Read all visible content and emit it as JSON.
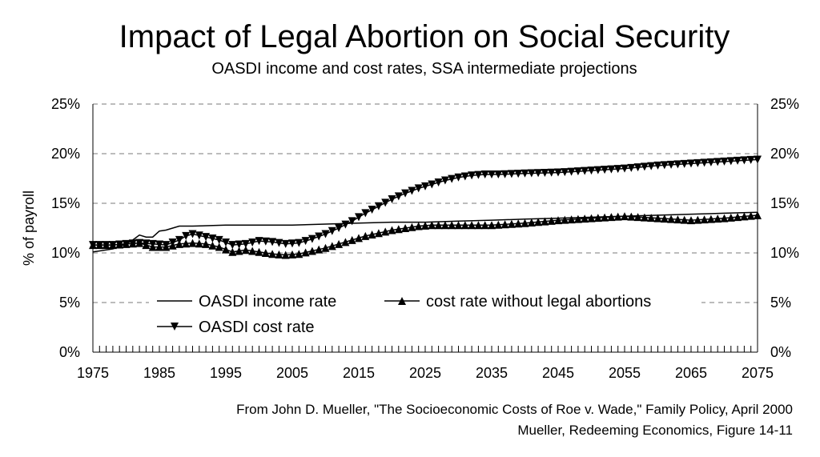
{
  "chart_data": {
    "type": "line",
    "title": "Impact of Legal Abortion on Social Security",
    "subtitle": "OASDI income and cost rates, SSA intermediate projections",
    "ylabel": "% of payroll",
    "xlabel": "",
    "xlim": [
      1975,
      2075
    ],
    "ylim": [
      0,
      25
    ],
    "x_ticks": [
      "1975",
      "1985",
      "1995",
      "2005",
      "2015",
      "2025",
      "2035",
      "2045",
      "2055",
      "2065",
      "2075"
    ],
    "y_ticks_left": [
      "0%",
      "5%",
      "10%",
      "15%",
      "20%",
      "25%"
    ],
    "y_ticks_right": [
      "0%",
      "5%",
      "10%",
      "15%",
      "20%",
      "25%"
    ],
    "grid": "horizontal dashed",
    "legend_position": "inside-bottom-left",
    "series": [
      {
        "name": "OASDI income rate",
        "marker": "none",
        "x": [
          1975,
          1978,
          1980,
          1981,
          1982,
          1983,
          1984,
          1985,
          1986,
          1987,
          1988,
          1990,
          1995,
          2000,
          2005,
          2010,
          2015,
          2020,
          2025,
          2030,
          2035,
          2040,
          2045,
          2050,
          2055,
          2060,
          2065,
          2070,
          2075
        ],
        "values": [
          10.1,
          10.4,
          10.9,
          11.3,
          11.8,
          11.6,
          11.6,
          12.2,
          12.3,
          12.5,
          12.7,
          12.7,
          12.8,
          12.8,
          12.8,
          12.9,
          13.0,
          13.1,
          13.1,
          13.2,
          13.3,
          13.4,
          13.5,
          13.6,
          13.7,
          13.8,
          13.9,
          14.0,
          14.1
        ]
      },
      {
        "name": "OASDI cost rate",
        "marker": "triangle-down",
        "x": [
          1975,
          1978,
          1980,
          1982,
          1984,
          1986,
          1988,
          1989,
          1990,
          1992,
          1994,
          1996,
          1998,
          2000,
          2002,
          2004,
          2006,
          2008,
          2010,
          2012,
          2014,
          2016,
          2018,
          2020,
          2022,
          2024,
          2026,
          2028,
          2030,
          2032,
          2034,
          2036,
          2040,
          2045,
          2050,
          2055,
          2060,
          2065,
          2070,
          2075
        ],
        "values": [
          10.8,
          10.8,
          10.9,
          11.0,
          10.9,
          10.8,
          11.3,
          11.7,
          11.9,
          11.6,
          11.3,
          10.8,
          10.9,
          11.2,
          11.1,
          10.9,
          11.0,
          11.4,
          11.9,
          12.5,
          13.2,
          14.0,
          14.7,
          15.4,
          16.0,
          16.5,
          16.9,
          17.3,
          17.6,
          17.8,
          17.9,
          17.9,
          18.0,
          18.1,
          18.3,
          18.5,
          18.8,
          19.0,
          19.2,
          19.4
        ]
      },
      {
        "name": "cost rate without legal abortions",
        "marker": "triangle-up",
        "x": [
          1975,
          1978,
          1980,
          1982,
          1984,
          1986,
          1988,
          1990,
          1992,
          1994,
          1996,
          1998,
          2000,
          2002,
          2004,
          2006,
          2008,
          2010,
          2012,
          2014,
          2016,
          2018,
          2020,
          2022,
          2024,
          2026,
          2030,
          2035,
          2040,
          2045,
          2050,
          2055,
          2060,
          2065,
          2070,
          2075
        ],
        "values": [
          10.8,
          10.8,
          10.9,
          11.0,
          10.6,
          10.6,
          10.9,
          11.0,
          10.9,
          10.6,
          10.1,
          10.3,
          10.1,
          9.9,
          9.8,
          9.9,
          10.2,
          10.5,
          10.9,
          11.3,
          11.7,
          12.0,
          12.3,
          12.5,
          12.7,
          12.8,
          12.8,
          12.8,
          13.0,
          13.3,
          13.5,
          13.7,
          13.5,
          13.3,
          13.5,
          13.8
        ]
      }
    ]
  },
  "source": {
    "line1": "From  John D. Mueller, \"The Socioeconomic Costs of Roe v. Wade,\" Family Policy, April 2000",
    "line2": "Mueller, Redeeming Economics, Figure 14-11"
  },
  "colors": {
    "line": "#000000",
    "grid": "#a6a6a6"
  }
}
